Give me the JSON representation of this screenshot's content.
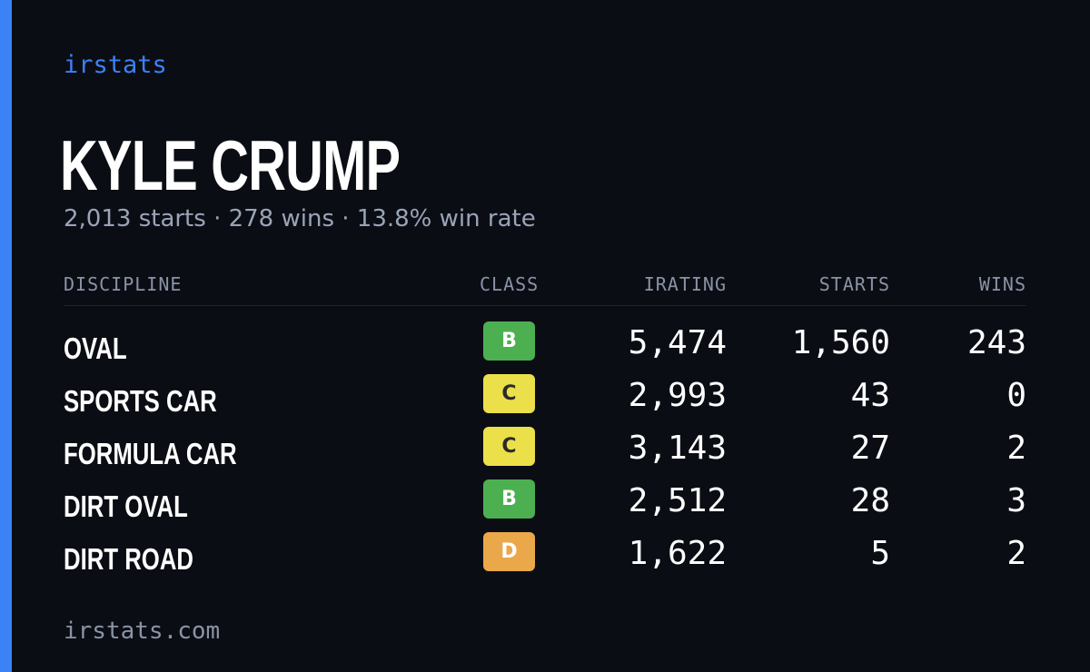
{
  "brand": "irstats",
  "driver_name": "KYLE CRUMP",
  "summary": "2,013 starts · 278 wins · 13.8% win rate",
  "table": {
    "headers": {
      "discipline": "DISCIPLINE",
      "class": "CLASS",
      "irating": "IRATING",
      "starts": "STARTS",
      "wins": "WINS"
    },
    "rows": [
      {
        "discipline": "OVAL",
        "class": "B",
        "class_color": "#4caf50",
        "class_text_color": "#ffffff",
        "irating": "5,474",
        "starts": "1,560",
        "wins": "243"
      },
      {
        "discipline": "SPORTS CAR",
        "class": "C",
        "class_color": "#ebe04a",
        "class_text_color": "#2a2a2a",
        "irating": "2,993",
        "starts": "43",
        "wins": "0"
      },
      {
        "discipline": "FORMULA CAR",
        "class": "C",
        "class_color": "#ebe04a",
        "class_text_color": "#2a2a2a",
        "irating": "3,143",
        "starts": "27",
        "wins": "2"
      },
      {
        "discipline": "DIRT OVAL",
        "class": "B",
        "class_color": "#4caf50",
        "class_text_color": "#ffffff",
        "irating": "2,512",
        "starts": "28",
        "wins": "3"
      },
      {
        "discipline": "DIRT ROAD",
        "class": "D",
        "class_color": "#eaa84a",
        "class_text_color": "#ffffff",
        "irating": "1,622",
        "starts": "5",
        "wins": "2"
      }
    ]
  },
  "footer": "irstats.com",
  "colors": {
    "background": "#0b0d14",
    "accent": "#3b82f6",
    "muted_text": "#9aa4b8"
  }
}
